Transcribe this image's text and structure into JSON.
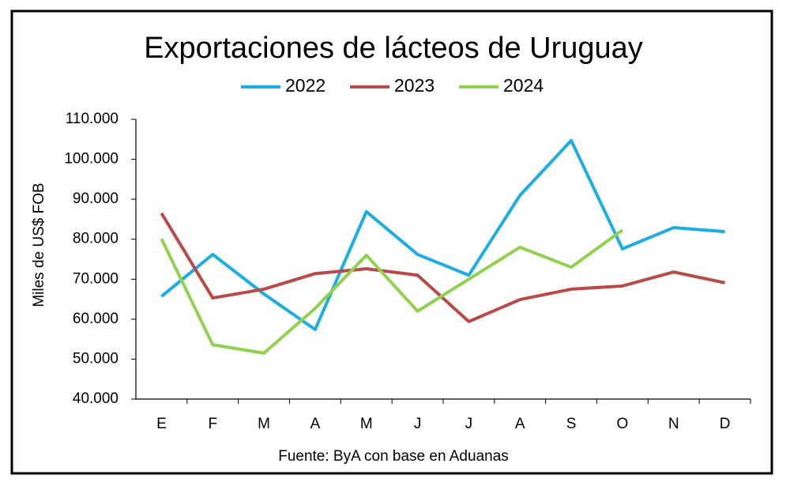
{
  "chart_data": {
    "type": "line",
    "title": "Exportaciones de lácteos de Uruguay",
    "y_label": "Miles de US$ FOB",
    "source": "Fuente: ByA con base en Aduanas",
    "categories": [
      "E",
      "F",
      "M",
      "A",
      "M",
      "J",
      "J",
      "A",
      "S",
      "O",
      "N",
      "D"
    ],
    "series": [
      {
        "name": "2022",
        "color": "#1cade4",
        "values": [
          65700,
          76200,
          66300,
          57400,
          86900,
          76200,
          71000,
          91000,
          104700,
          77600,
          82900,
          81900
        ]
      },
      {
        "name": "2023",
        "color": "#b94a48",
        "values": [
          86500,
          65300,
          67500,
          71400,
          72600,
          71000,
          59400,
          64900,
          67500,
          68300,
          71800,
          69100
        ]
      },
      {
        "name": "2024",
        "color": "#92d050",
        "values": [
          80100,
          53600,
          51500,
          62700,
          76000,
          62000,
          70000,
          78000,
          73000,
          82300,
          null,
          null
        ]
      }
    ],
    "ylim": [
      40000,
      110000
    ],
    "yticks": [
      {
        "value": 40000,
        "label": "40.000"
      },
      {
        "value": 50000,
        "label": "50.000"
      },
      {
        "value": 60000,
        "label": "60.000"
      },
      {
        "value": 70000,
        "label": "70.000"
      },
      {
        "value": 80000,
        "label": "80.000"
      },
      {
        "value": 90000,
        "label": "90.000"
      },
      {
        "value": 100000,
        "label": "100.000"
      },
      {
        "value": 110000,
        "label": "110.000"
      }
    ],
    "grid": false,
    "legend": "top"
  }
}
